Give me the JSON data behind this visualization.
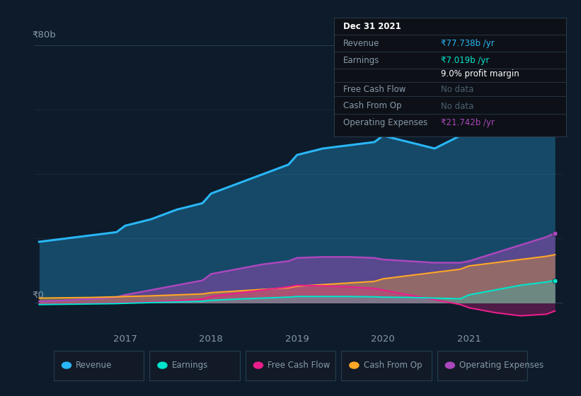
{
  "background_color": "#0d1b2a",
  "plot_bg_color": "#0d1b2a",
  "x_years": [
    2016.0,
    2016.3,
    2016.6,
    2016.9,
    2017.0,
    2017.3,
    2017.6,
    2017.9,
    2018.0,
    2018.3,
    2018.6,
    2018.9,
    2019.0,
    2019.3,
    2019.6,
    2019.9,
    2020.0,
    2020.3,
    2020.6,
    2020.9,
    2021.0,
    2021.3,
    2021.6,
    2021.9,
    2022.0
  ],
  "revenue": [
    19,
    20,
    21,
    22,
    24,
    26,
    29,
    31,
    34,
    37,
    40,
    43,
    46,
    48,
    49,
    50,
    52,
    50,
    48,
    52,
    58,
    65,
    72,
    77,
    78
  ],
  "earnings": [
    -0.5,
    -0.4,
    -0.3,
    -0.2,
    -0.1,
    0.1,
    0.3,
    0.5,
    0.8,
    1.2,
    1.5,
    1.8,
    2.0,
    2.0,
    2.0,
    1.9,
    1.8,
    1.7,
    1.5,
    1.3,
    2.5,
    4.0,
    5.5,
    6.5,
    7.0
  ],
  "free_cash_flow": [
    -0.3,
    -0.2,
    -0.1,
    0.0,
    0.1,
    0.3,
    0.7,
    1.2,
    2.0,
    3.0,
    4.0,
    5.0,
    5.5,
    5.3,
    5.0,
    4.5,
    4.0,
    2.5,
    1.0,
    -0.5,
    -1.5,
    -3.0,
    -4.0,
    -3.5,
    -2.5
  ],
  "cash_from_op": [
    1.5,
    1.6,
    1.7,
    1.9,
    2.0,
    2.2,
    2.5,
    2.8,
    3.2,
    3.7,
    4.2,
    4.7,
    5.2,
    5.7,
    6.2,
    6.7,
    7.5,
    8.5,
    9.5,
    10.5,
    11.5,
    12.5,
    13.5,
    14.5,
    15.0
  ],
  "operating_expenses": [
    0.5,
    0.8,
    1.2,
    1.8,
    2.5,
    4.0,
    5.5,
    7.0,
    9.0,
    10.5,
    12.0,
    13.0,
    14.0,
    14.3,
    14.3,
    14.0,
    13.5,
    13.0,
    12.5,
    12.5,
    13.0,
    15.5,
    18.0,
    20.5,
    21.7
  ],
  "revenue_color": "#29b6f6",
  "earnings_color": "#00e5cc",
  "free_cash_flow_color": "#e91e8c",
  "cash_from_op_color": "#ffa726",
  "operating_expenses_color": "#ab47bc",
  "grid_color": "#263f52",
  "axis_label_color": "#8899aa",
  "legend_bg": "#111a26",
  "legend_border": "#263f52",
  "info_box_bg": "#0d1117",
  "info_box_border": "#2a3a4a",
  "info_date": "Dec 31 2021",
  "info_revenue_val": "₹77.738b /yr",
  "info_earnings_val": "₹7.019b /yr",
  "info_margin": "9.0% profit margin",
  "info_fcf_val": "No data",
  "info_cfop_val": "No data",
  "info_opex_val": "₹21.742b /yr",
  "ylim": [
    -8,
    88
  ],
  "xlim": [
    2015.95,
    2022.1
  ],
  "xtick_positions": [
    2017,
    2018,
    2019,
    2020,
    2021
  ],
  "legend_entries": [
    "Revenue",
    "Earnings",
    "Free Cash Flow",
    "Cash From Op",
    "Operating Expenses"
  ],
  "legend_colors": [
    "#29b6f6",
    "#00e5cc",
    "#e91e8c",
    "#ffa726",
    "#ab47bc"
  ],
  "no_data_color": "#4a6070"
}
